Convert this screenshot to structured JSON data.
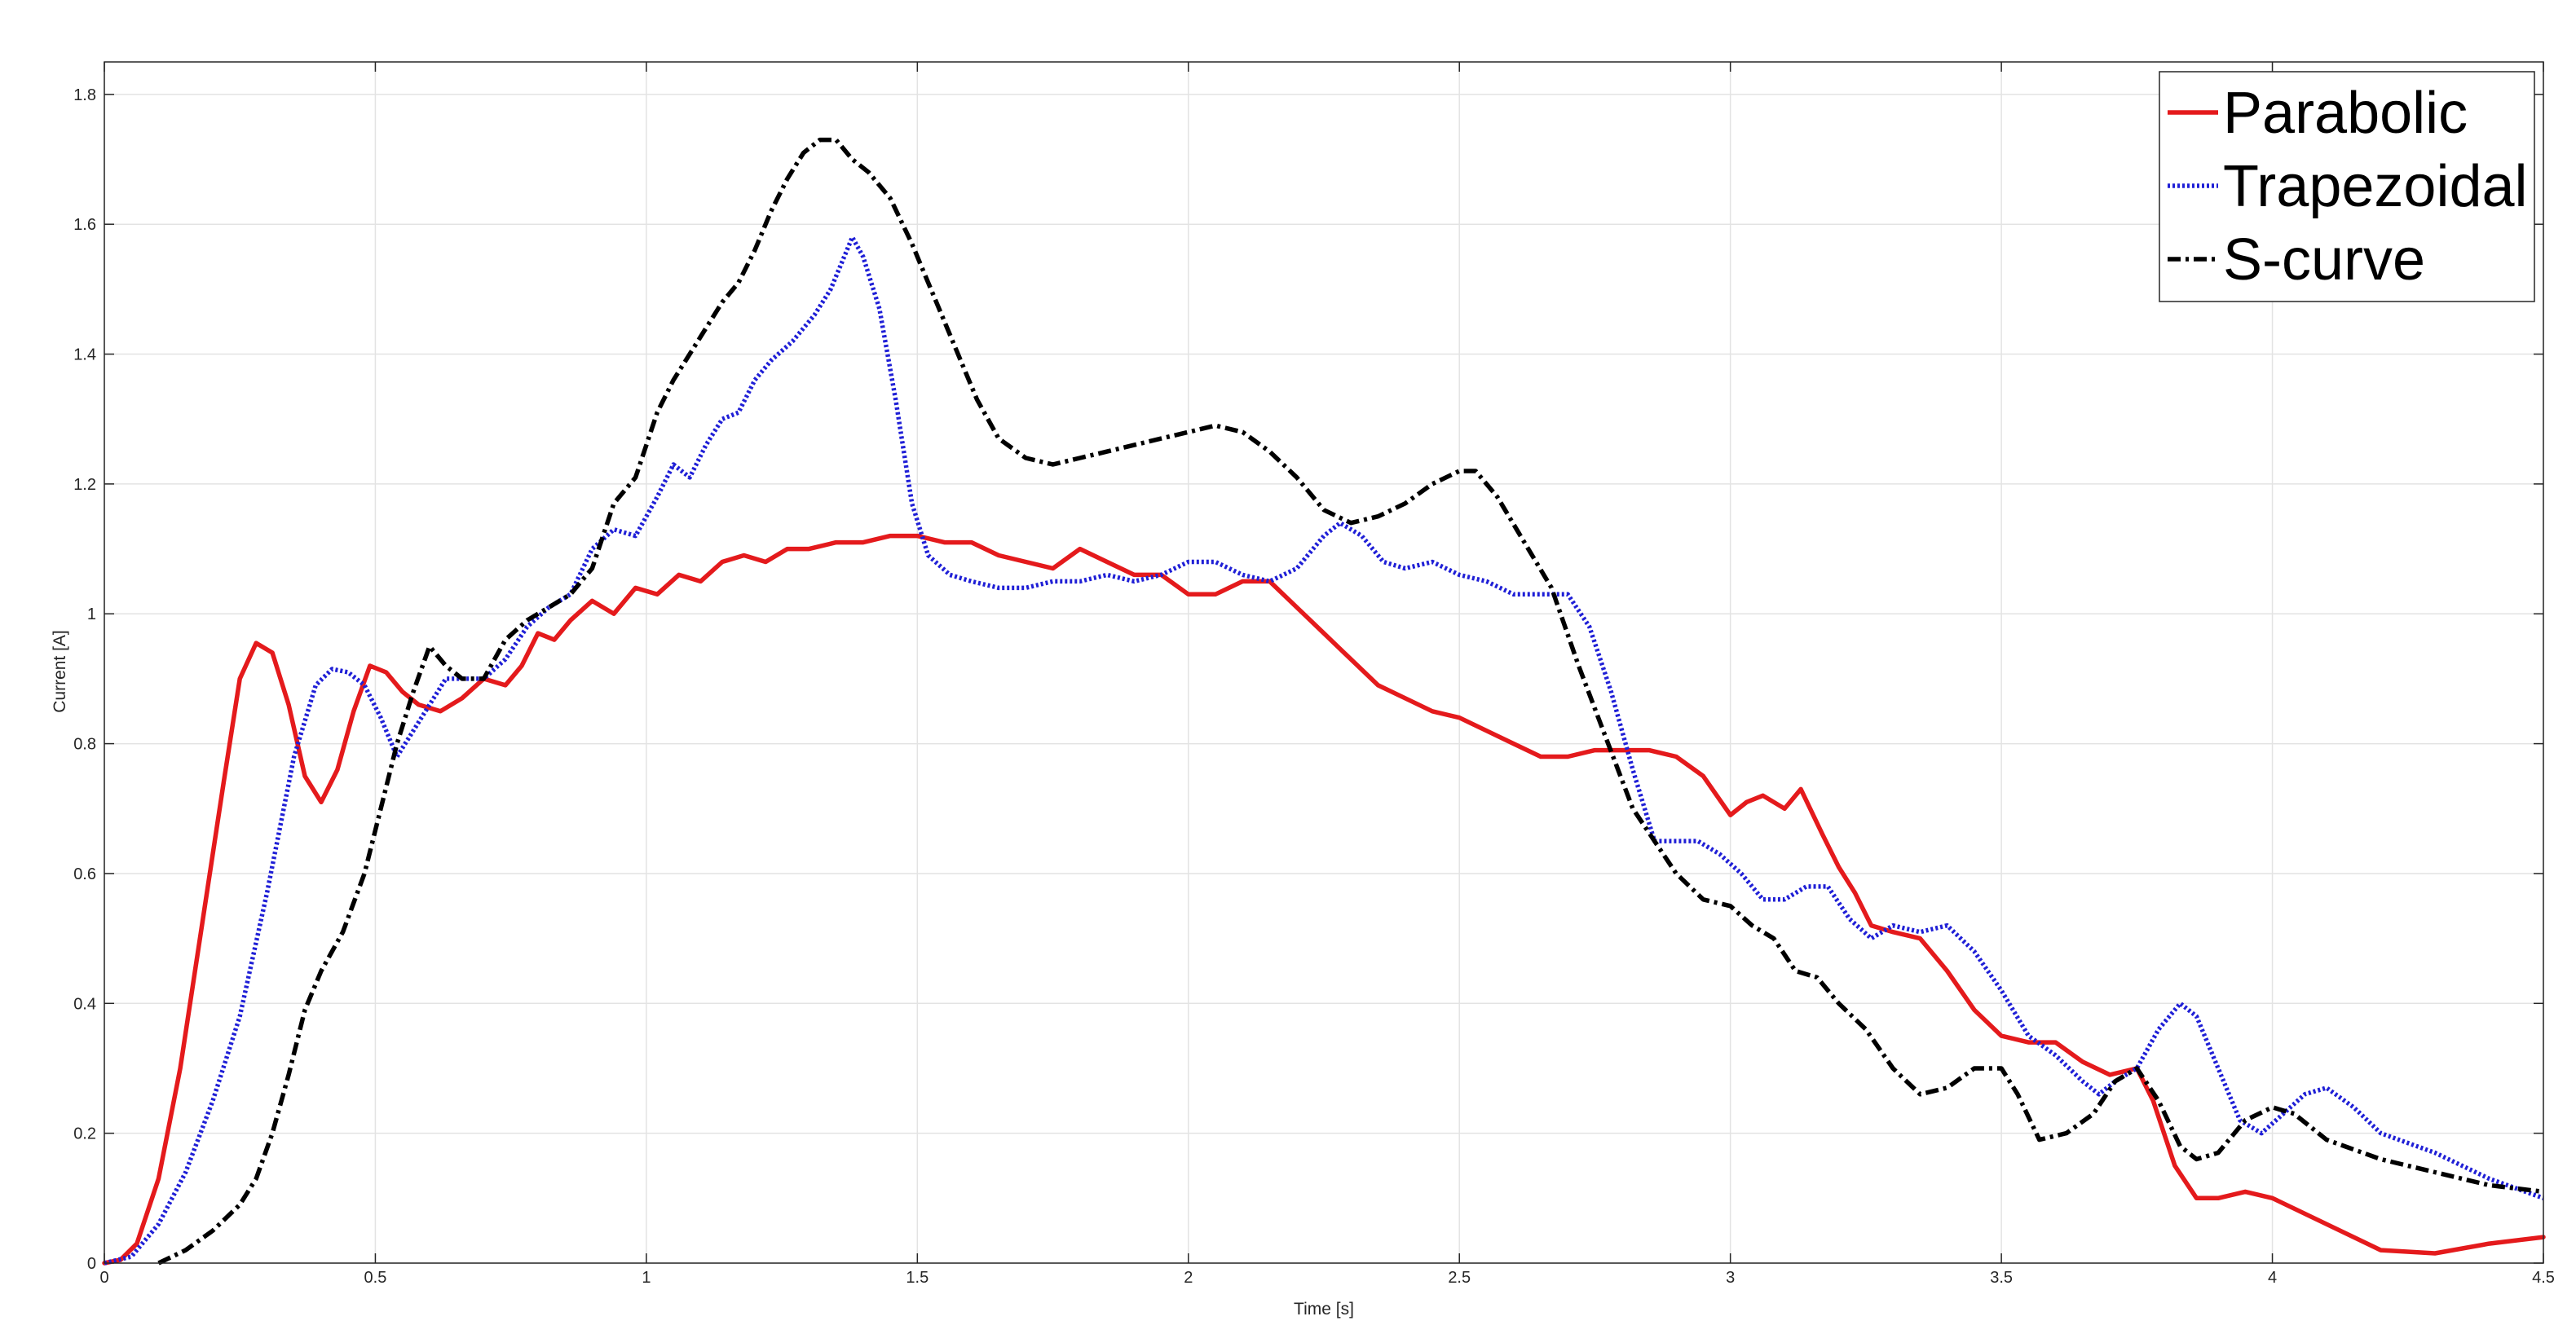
{
  "chart_data": {
    "type": "line",
    "title": "",
    "xlabel": "Time [s]",
    "ylabel": "Current [A]",
    "xlim": [
      0,
      4.5
    ],
    "ylim": [
      0,
      1.85
    ],
    "xticks": [
      0,
      0.5,
      1,
      1.5,
      2,
      2.5,
      3,
      3.5,
      4,
      4.5
    ],
    "xtick_labels": [
      "0",
      "0.5",
      "1",
      "1.5",
      "2",
      "2.5",
      "3",
      "3.5",
      "4",
      "4.5"
    ],
    "yticks": [
      0,
      0.2,
      0.4,
      0.6,
      0.8,
      1.0,
      1.2,
      1.4,
      1.6,
      1.8
    ],
    "ytick_labels": [
      "0",
      "0.2",
      "0.4",
      "0.6",
      "0.8",
      "1",
      "1.2",
      "1.4",
      "1.6",
      "1.8"
    ],
    "grid": true,
    "legend_position": "top-right",
    "series": [
      {
        "name": "Parabolic",
        "color": "#e41a1c",
        "style": "solid",
        "points": [
          [
            0,
            0
          ],
          [
            0.03,
            0.005
          ],
          [
            0.06,
            0.03
          ],
          [
            0.1,
            0.13
          ],
          [
            0.14,
            0.3
          ],
          [
            0.18,
            0.52
          ],
          [
            0.22,
            0.74
          ],
          [
            0.25,
            0.9
          ],
          [
            0.28,
            0.955
          ],
          [
            0.31,
            0.94
          ],
          [
            0.34,
            0.86
          ],
          [
            0.37,
            0.75
          ],
          [
            0.4,
            0.71
          ],
          [
            0.43,
            0.76
          ],
          [
            0.46,
            0.85
          ],
          [
            0.49,
            0.92
          ],
          [
            0.52,
            0.91
          ],
          [
            0.55,
            0.88
          ],
          [
            0.58,
            0.86
          ],
          [
            0.62,
            0.85
          ],
          [
            0.66,
            0.87
          ],
          [
            0.7,
            0.9
          ],
          [
            0.74,
            0.89
          ],
          [
            0.77,
            0.92
          ],
          [
            0.8,
            0.97
          ],
          [
            0.83,
            0.96
          ],
          [
            0.86,
            0.99
          ],
          [
            0.9,
            1.02
          ],
          [
            0.94,
            1.0
          ],
          [
            0.98,
            1.04
          ],
          [
            1.02,
            1.03
          ],
          [
            1.06,
            1.06
          ],
          [
            1.1,
            1.05
          ],
          [
            1.14,
            1.08
          ],
          [
            1.18,
            1.09
          ],
          [
            1.22,
            1.08
          ],
          [
            1.26,
            1.1
          ],
          [
            1.3,
            1.1
          ],
          [
            1.35,
            1.11
          ],
          [
            1.4,
            1.11
          ],
          [
            1.45,
            1.12
          ],
          [
            1.5,
            1.12
          ],
          [
            1.55,
            1.11
          ],
          [
            1.6,
            1.11
          ],
          [
            1.65,
            1.09
          ],
          [
            1.7,
            1.08
          ],
          [
            1.75,
            1.07
          ],
          [
            1.8,
            1.1
          ],
          [
            1.85,
            1.08
          ],
          [
            1.9,
            1.06
          ],
          [
            1.95,
            1.06
          ],
          [
            2.0,
            1.03
          ],
          [
            2.05,
            1.03
          ],
          [
            2.1,
            1.05
          ],
          [
            2.15,
            1.05
          ],
          [
            2.2,
            1.01
          ],
          [
            2.25,
            0.97
          ],
          [
            2.3,
            0.93
          ],
          [
            2.35,
            0.89
          ],
          [
            2.4,
            0.87
          ],
          [
            2.45,
            0.85
          ],
          [
            2.5,
            0.84
          ],
          [
            2.55,
            0.82
          ],
          [
            2.6,
            0.8
          ],
          [
            2.65,
            0.78
          ],
          [
            2.7,
            0.78
          ],
          [
            2.75,
            0.79
          ],
          [
            2.8,
            0.79
          ],
          [
            2.85,
            0.79
          ],
          [
            2.9,
            0.78
          ],
          [
            2.95,
            0.75
          ],
          [
            3.0,
            0.69
          ],
          [
            3.03,
            0.71
          ],
          [
            3.06,
            0.72
          ],
          [
            3.1,
            0.7
          ],
          [
            3.13,
            0.73
          ],
          [
            3.17,
            0.66
          ],
          [
            3.2,
            0.61
          ],
          [
            3.23,
            0.57
          ],
          [
            3.26,
            0.52
          ],
          [
            3.3,
            0.51
          ],
          [
            3.35,
            0.5
          ],
          [
            3.4,
            0.45
          ],
          [
            3.45,
            0.39
          ],
          [
            3.5,
            0.35
          ],
          [
            3.55,
            0.34
          ],
          [
            3.6,
            0.34
          ],
          [
            3.65,
            0.31
          ],
          [
            3.7,
            0.29
          ],
          [
            3.75,
            0.3
          ],
          [
            3.78,
            0.25
          ],
          [
            3.82,
            0.15
          ],
          [
            3.86,
            0.1
          ],
          [
            3.9,
            0.1
          ],
          [
            3.95,
            0.11
          ],
          [
            4.0,
            0.1
          ],
          [
            4.1,
            0.06
          ],
          [
            4.2,
            0.02
          ],
          [
            4.3,
            0.015
          ],
          [
            4.4,
            0.03
          ],
          [
            4.5,
            0.04
          ]
        ]
      },
      {
        "name": "Trapezoidal",
        "color": "#1f1fd6",
        "style": "dotted",
        "points": [
          [
            0,
            0
          ],
          [
            0.05,
            0.01
          ],
          [
            0.1,
            0.06
          ],
          [
            0.15,
            0.14
          ],
          [
            0.2,
            0.25
          ],
          [
            0.25,
            0.38
          ],
          [
            0.3,
            0.57
          ],
          [
            0.35,
            0.78
          ],
          [
            0.39,
            0.89
          ],
          [
            0.42,
            0.915
          ],
          [
            0.45,
            0.91
          ],
          [
            0.48,
            0.89
          ],
          [
            0.51,
            0.84
          ],
          [
            0.54,
            0.78
          ],
          [
            0.57,
            0.82
          ],
          [
            0.6,
            0.86
          ],
          [
            0.63,
            0.9
          ],
          [
            0.66,
            0.9
          ],
          [
            0.7,
            0.9
          ],
          [
            0.74,
            0.93
          ],
          [
            0.78,
            0.98
          ],
          [
            0.82,
            1.01
          ],
          [
            0.86,
            1.03
          ],
          [
            0.9,
            1.1
          ],
          [
            0.94,
            1.13
          ],
          [
            0.98,
            1.12
          ],
          [
            1.02,
            1.18
          ],
          [
            1.05,
            1.23
          ],
          [
            1.08,
            1.21
          ],
          [
            1.11,
            1.26
          ],
          [
            1.14,
            1.3
          ],
          [
            1.17,
            1.31
          ],
          [
            1.2,
            1.36
          ],
          [
            1.23,
            1.39
          ],
          [
            1.27,
            1.42
          ],
          [
            1.31,
            1.46
          ],
          [
            1.34,
            1.5
          ],
          [
            1.37,
            1.56
          ],
          [
            1.38,
            1.58
          ],
          [
            1.4,
            1.55
          ],
          [
            1.43,
            1.47
          ],
          [
            1.46,
            1.33
          ],
          [
            1.49,
            1.17
          ],
          [
            1.52,
            1.09
          ],
          [
            1.56,
            1.06
          ],
          [
            1.6,
            1.05
          ],
          [
            1.65,
            1.04
          ],
          [
            1.7,
            1.04
          ],
          [
            1.75,
            1.05
          ],
          [
            1.8,
            1.05
          ],
          [
            1.85,
            1.06
          ],
          [
            1.9,
            1.05
          ],
          [
            1.95,
            1.06
          ],
          [
            2.0,
            1.08
          ],
          [
            2.05,
            1.08
          ],
          [
            2.1,
            1.06
          ],
          [
            2.15,
            1.05
          ],
          [
            2.2,
            1.07
          ],
          [
            2.25,
            1.12
          ],
          [
            2.28,
            1.14
          ],
          [
            2.32,
            1.12
          ],
          [
            2.36,
            1.08
          ],
          [
            2.4,
            1.07
          ],
          [
            2.45,
            1.08
          ],
          [
            2.5,
            1.06
          ],
          [
            2.55,
            1.05
          ],
          [
            2.6,
            1.03
          ],
          [
            2.65,
            1.03
          ],
          [
            2.7,
            1.03
          ],
          [
            2.74,
            0.98
          ],
          [
            2.78,
            0.88
          ],
          [
            2.82,
            0.76
          ],
          [
            2.86,
            0.65
          ],
          [
            2.9,
            0.65
          ],
          [
            2.94,
            0.65
          ],
          [
            2.98,
            0.63
          ],
          [
            3.02,
            0.6
          ],
          [
            3.06,
            0.56
          ],
          [
            3.1,
            0.56
          ],
          [
            3.14,
            0.58
          ],
          [
            3.18,
            0.58
          ],
          [
            3.22,
            0.53
          ],
          [
            3.26,
            0.5
          ],
          [
            3.3,
            0.52
          ],
          [
            3.35,
            0.51
          ],
          [
            3.4,
            0.52
          ],
          [
            3.45,
            0.48
          ],
          [
            3.5,
            0.42
          ],
          [
            3.55,
            0.35
          ],
          [
            3.6,
            0.32
          ],
          [
            3.65,
            0.28
          ],
          [
            3.68,
            0.26
          ],
          [
            3.71,
            0.28
          ],
          [
            3.75,
            0.3
          ],
          [
            3.79,
            0.36
          ],
          [
            3.83,
            0.4
          ],
          [
            3.86,
            0.38
          ],
          [
            3.9,
            0.3
          ],
          [
            3.94,
            0.22
          ],
          [
            3.98,
            0.2
          ],
          [
            4.02,
            0.23
          ],
          [
            4.06,
            0.26
          ],
          [
            4.1,
            0.27
          ],
          [
            4.15,
            0.24
          ],
          [
            4.2,
            0.2
          ],
          [
            4.3,
            0.17
          ],
          [
            4.4,
            0.13
          ],
          [
            4.5,
            0.1
          ]
        ]
      },
      {
        "name": "S-curve",
        "color": "#000000",
        "style": "dashdot",
        "points": [
          [
            0.1,
            0
          ],
          [
            0.15,
            0.02
          ],
          [
            0.2,
            0.05
          ],
          [
            0.25,
            0.09
          ],
          [
            0.28,
            0.13
          ],
          [
            0.31,
            0.2
          ],
          [
            0.34,
            0.29
          ],
          [
            0.37,
            0.39
          ],
          [
            0.4,
            0.45
          ],
          [
            0.44,
            0.51
          ],
          [
            0.48,
            0.6
          ],
          [
            0.51,
            0.7
          ],
          [
            0.54,
            0.8
          ],
          [
            0.57,
            0.88
          ],
          [
            0.6,
            0.95
          ],
          [
            0.63,
            0.92
          ],
          [
            0.66,
            0.9
          ],
          [
            0.7,
            0.9
          ],
          [
            0.74,
            0.96
          ],
          [
            0.78,
            0.99
          ],
          [
            0.82,
            1.01
          ],
          [
            0.86,
            1.03
          ],
          [
            0.9,
            1.07
          ],
          [
            0.94,
            1.17
          ],
          [
            0.98,
            1.21
          ],
          [
            1.02,
            1.31
          ],
          [
            1.05,
            1.36
          ],
          [
            1.08,
            1.4
          ],
          [
            1.11,
            1.44
          ],
          [
            1.14,
            1.48
          ],
          [
            1.17,
            1.51
          ],
          [
            1.2,
            1.56
          ],
          [
            1.23,
            1.62
          ],
          [
            1.26,
            1.67
          ],
          [
            1.29,
            1.71
          ],
          [
            1.32,
            1.73
          ],
          [
            1.35,
            1.73
          ],
          [
            1.38,
            1.7
          ],
          [
            1.41,
            1.68
          ],
          [
            1.45,
            1.64
          ],
          [
            1.49,
            1.57
          ],
          [
            1.53,
            1.49
          ],
          [
            1.57,
            1.41
          ],
          [
            1.61,
            1.33
          ],
          [
            1.65,
            1.27
          ],
          [
            1.7,
            1.24
          ],
          [
            1.75,
            1.23
          ],
          [
            1.8,
            1.24
          ],
          [
            1.85,
            1.25
          ],
          [
            1.9,
            1.26
          ],
          [
            1.95,
            1.27
          ],
          [
            2.0,
            1.28
          ],
          [
            2.05,
            1.29
          ],
          [
            2.1,
            1.28
          ],
          [
            2.15,
            1.25
          ],
          [
            2.2,
            1.21
          ],
          [
            2.25,
            1.16
          ],
          [
            2.3,
            1.14
          ],
          [
            2.35,
            1.15
          ],
          [
            2.4,
            1.17
          ],
          [
            2.45,
            1.2
          ],
          [
            2.5,
            1.22
          ],
          [
            2.53,
            1.22
          ],
          [
            2.57,
            1.18
          ],
          [
            2.62,
            1.11
          ],
          [
            2.67,
            1.04
          ],
          [
            2.72,
            0.92
          ],
          [
            2.77,
            0.81
          ],
          [
            2.82,
            0.7
          ],
          [
            2.86,
            0.65
          ],
          [
            2.9,
            0.6
          ],
          [
            2.95,
            0.56
          ],
          [
            3.0,
            0.55
          ],
          [
            3.04,
            0.52
          ],
          [
            3.08,
            0.5
          ],
          [
            3.12,
            0.45
          ],
          [
            3.16,
            0.44
          ],
          [
            3.2,
            0.4
          ],
          [
            3.25,
            0.36
          ],
          [
            3.3,
            0.3
          ],
          [
            3.35,
            0.26
          ],
          [
            3.4,
            0.27
          ],
          [
            3.45,
            0.3
          ],
          [
            3.5,
            0.3
          ],
          [
            3.53,
            0.26
          ],
          [
            3.57,
            0.19
          ],
          [
            3.62,
            0.2
          ],
          [
            3.67,
            0.23
          ],
          [
            3.71,
            0.28
          ],
          [
            3.75,
            0.3
          ],
          [
            3.79,
            0.25
          ],
          [
            3.83,
            0.18
          ],
          [
            3.86,
            0.16
          ],
          [
            3.9,
            0.17
          ],
          [
            3.95,
            0.22
          ],
          [
            4.0,
            0.24
          ],
          [
            4.04,
            0.23
          ],
          [
            4.1,
            0.19
          ],
          [
            4.2,
            0.16
          ],
          [
            4.3,
            0.14
          ],
          [
            4.4,
            0.12
          ],
          [
            4.5,
            0.11
          ]
        ]
      }
    ]
  }
}
